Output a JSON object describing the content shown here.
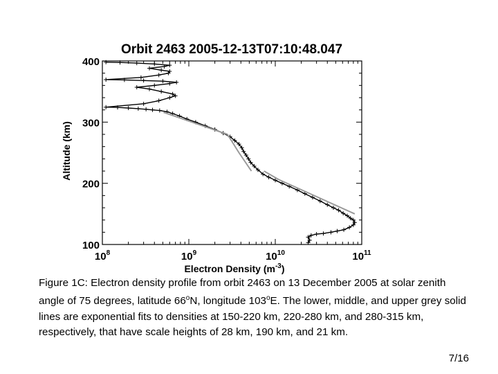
{
  "chart_data": {
    "type": "line",
    "title": "Orbit 2463  2005-12-13T07:10:48.047",
    "xlabel": "Electron Density (m",
    "xlabel_exponent": "-3",
    "xlabel_suffix": ")",
    "ylabel": "Altitude (km)",
    "x_scale": "log",
    "xlim": [
      100000000,
      100000000000
    ],
    "ylim": [
      100,
      400
    ],
    "x_ticks": [
      {
        "base": "10",
        "exp": "8",
        "value": 100000000
      },
      {
        "base": "10",
        "exp": "9",
        "value": 1000000000
      },
      {
        "base": "10",
        "exp": "10",
        "value": 10000000000
      },
      {
        "base": "10",
        "exp": "11",
        "value": 100000000000
      }
    ],
    "y_ticks": [
      "100",
      "200",
      "300",
      "400"
    ],
    "grid": false,
    "series": [
      {
        "role": "measured",
        "color": "#000000",
        "marker": "plus",
        "points": [
          [
            24000000000.0,
            103
          ],
          [
            25000000000.0,
            107
          ],
          [
            24000000000.0,
            112
          ],
          [
            26000000000.0,
            115
          ],
          [
            30000000000.0,
            117
          ],
          [
            36000000000.0,
            118
          ],
          [
            44000000000.0,
            120
          ],
          [
            52000000000.0,
            122
          ],
          [
            62000000000.0,
            124
          ],
          [
            72000000000.0,
            128
          ],
          [
            80000000000.0,
            132
          ],
          [
            83000000000.0,
            136
          ],
          [
            80000000000.0,
            140
          ],
          [
            74000000000.0,
            143
          ],
          [
            68000000000.0,
            147
          ],
          [
            61000000000.0,
            151
          ],
          [
            54000000000.0,
            156
          ],
          [
            47000000000.0,
            160
          ],
          [
            40000000000.0,
            165
          ],
          [
            33000000000.0,
            171
          ],
          [
            27000000000.0,
            177
          ],
          [
            22000000000.0,
            183
          ],
          [
            18000000000.0,
            189
          ],
          [
            14500000000.0,
            195
          ],
          [
            12000000000.0,
            200
          ],
          [
            10000000000.0,
            205
          ],
          [
            8400000000.0,
            210
          ],
          [
            7200000000.0,
            215
          ],
          [
            6300000000.0,
            222
          ],
          [
            5700000000.0,
            228
          ],
          [
            5200000000.0,
            234
          ],
          [
            4900000000.0,
            240
          ],
          [
            4600000000.0,
            246
          ],
          [
            4300000000.0,
            252
          ],
          [
            4100000000.0,
            258
          ],
          [
            3800000000.0,
            264
          ],
          [
            3400000000.0,
            270
          ],
          [
            3000000000.0,
            276
          ],
          [
            2500000000.0,
            282
          ],
          [
            2000000000.0,
            288
          ],
          [
            1550000000.0,
            294
          ],
          [
            1200000000.0,
            300
          ],
          [
            950000000.0,
            305
          ],
          [
            780000000.0,
            310
          ],
          [
            650000000.0,
            314
          ],
          [
            560000000.0,
            317
          ],
          [
            460000000.0,
            319
          ],
          [
            380000000.0,
            320
          ],
          [
            320000000.0,
            321
          ],
          [
            260000000.0,
            322
          ],
          [
            200000000.0,
            323
          ],
          [
            150000000.0,
            324
          ],
          [
            110000000.0,
            324.5
          ],
          [
            300000000.0,
            330
          ],
          [
            450000000.0,
            335
          ],
          [
            600000000.0,
            340
          ],
          [
            700000000.0,
            343
          ],
          [
            650000000.0,
            346
          ],
          [
            480000000.0,
            350
          ],
          [
            350000000.0,
            354
          ],
          [
            250000000.0,
            357
          ],
          [
            400000000.0,
            360
          ],
          [
            600000000.0,
            363
          ],
          [
            720000000.0,
            365
          ],
          [
            500000000.0,
            367
          ],
          [
            300000000.0,
            368
          ],
          [
            180000000.0,
            369
          ],
          [
            110000000.0,
            369.5
          ],
          [
            280000000.0,
            373
          ],
          [
            450000000.0,
            377
          ],
          [
            580000000.0,
            380
          ],
          [
            600000000.0,
            383
          ],
          [
            480000000.0,
            385
          ],
          [
            350000000.0,
            388
          ],
          [
            520000000.0,
            391
          ],
          [
            600000000.0,
            393
          ],
          [
            400000000.0,
            395
          ],
          [
            250000000.0,
            396.5
          ],
          [
            160000000.0,
            397.5
          ],
          [
            110000000.0,
            398
          ]
        ]
      },
      {
        "role": "fit-lower",
        "color": "#999999",
        "marker": "none",
        "points": [
          [
            83000000000.0,
            150
          ],
          [
            11000000000.0,
            206
          ],
          [
            7400000000.0,
            220
          ]
        ]
      },
      {
        "role": "fit-middle",
        "color": "#999999",
        "marker": "none",
        "points": [
          [
            5300000000.0,
            220
          ],
          [
            3800000000.0,
            250
          ],
          [
            2800000000.0,
            280
          ]
        ]
      },
      {
        "role": "fit-upper",
        "color": "#999999",
        "marker": "none",
        "points": [
          [
            2800000000.0,
            280
          ],
          [
            900000000.0,
            304
          ],
          [
            510000000.0,
            316
          ]
        ]
      }
    ]
  },
  "caption": {
    "part1": "Figure 1C: Electron density profile from orbit 2463 on 13 December 2005 at solar zenith angle of 75 degrees, latitude 66",
    "deg1": "o",
    "part2": "N, longitude 103",
    "deg2": "o",
    "part3": "E. The lower, middle, and upper grey solid lines are exponential fits to densities at 150-220 km, 220-280 km, and 280-315 km, respectively, that have scale heights of 28 km, 190 km, and 21 km."
  },
  "page_number": "7/16"
}
